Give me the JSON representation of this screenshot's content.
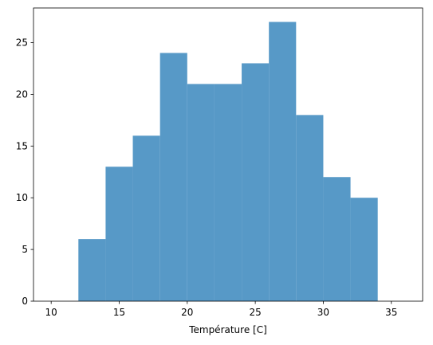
{
  "chart_data": {
    "type": "histogram",
    "x_label": "Température [C]",
    "bins": [
      10,
      12,
      14,
      16,
      18,
      20,
      22,
      24,
      26,
      28,
      30,
      32,
      34,
      36
    ],
    "values": [
      0,
      6,
      13,
      16,
      24,
      21,
      21,
      23,
      27,
      18,
      12,
      10,
      0
    ],
    "color": "#5799c7",
    "xlim": [
      8.7,
      37.3
    ],
    "xticks": [
      10,
      15,
      20,
      25,
      30,
      35
    ],
    "ylim": [
      0,
      28.35
    ],
    "yticks": [
      0,
      5,
      10,
      15,
      20,
      25
    ],
    "grid": false
  }
}
